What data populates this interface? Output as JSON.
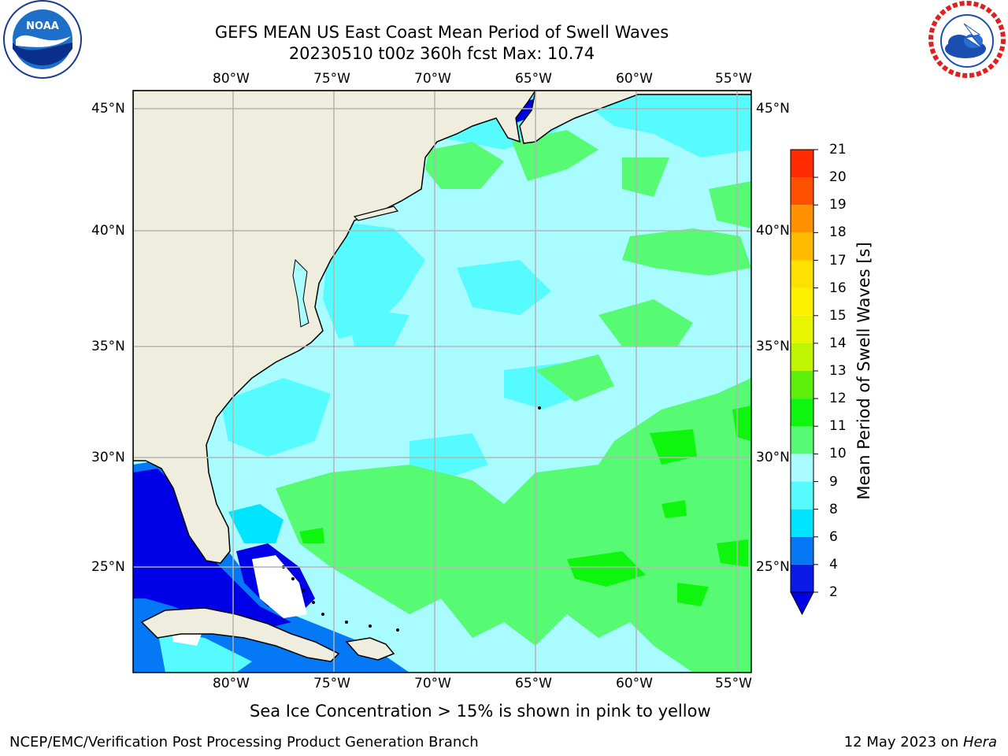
{
  "title_line1": "GEFS MEAN US East Coast Mean Period of Swell Waves",
  "title_line2": "20230510 t00z 360h fcst   Max: 10.74",
  "logos": {
    "left": "nora-logo",
    "right": "national-weather-service-logo"
  },
  "map": {
    "lon_ticks": [
      "80°W",
      "75°W",
      "70°W",
      "65°W",
      "60°W",
      "55°W"
    ],
    "lat_ticks": [
      "45°N",
      "40°N",
      "35°N",
      "30°N",
      "25°N"
    ],
    "colors": {
      "land": "#eeedde",
      "ocean_base": "#a8fcff",
      "grid": "#b4b4b4"
    }
  },
  "colorbar": {
    "label": "Mean Period of Swell Waves [s]",
    "tick_labels": [
      "2",
      "4",
      "6",
      "8",
      "9",
      "10",
      "11",
      "12",
      "13",
      "14",
      "15",
      "16",
      "17",
      "18",
      "19",
      "20",
      "21"
    ],
    "colors": [
      "#0a19e6",
      "#0478f5",
      "#00e5ff",
      "#55fbff",
      "#a8fcff",
      "#57fb73",
      "#0ef60e",
      "#5cf00a",
      "#c0f500",
      "#e8f500",
      "#fff000",
      "#ffe000",
      "#ffbb00",
      "#ff9000",
      "#ff5000",
      "#ff2a00",
      "#ff0000"
    ],
    "under_color": "#0000e6"
  },
  "footer": {
    "note": "Sea Ice Concentration > 15% is shown in pink to yellow",
    "left": "NCEP/EMC/Verification Post Processing Product Generation Branch",
    "right_date": "12 May 2023 on ",
    "right_host": "Hera"
  }
}
